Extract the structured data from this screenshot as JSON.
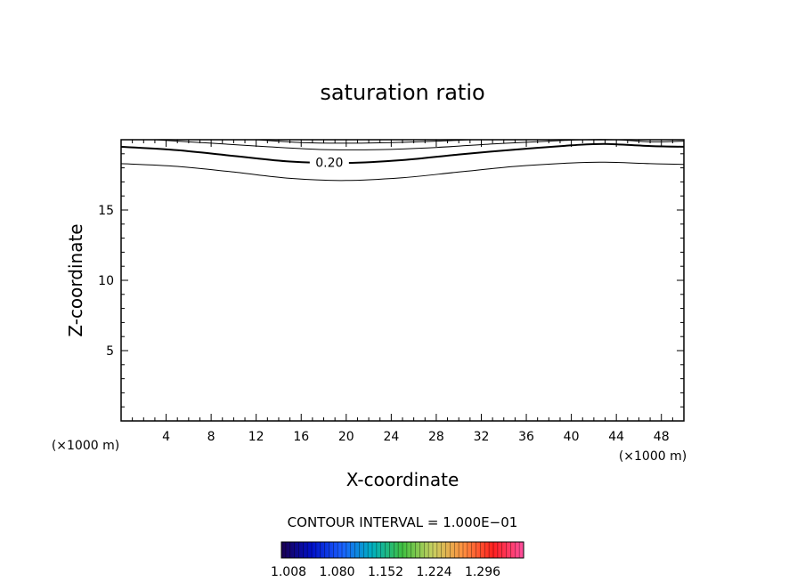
{
  "chart_data": {
    "type": "contour",
    "title": "saturation ratio",
    "xlabel": "X-coordinate",
    "ylabel": "Z-coordinate",
    "x_unit": "(×1000 m)",
    "y_unit": "(×1000 m)",
    "xlim": [
      0,
      50
    ],
    "ylim": [
      0,
      20
    ],
    "x_ticks": [
      4,
      8,
      12,
      16,
      20,
      24,
      28,
      32,
      36,
      40,
      44,
      48
    ],
    "y_ticks": [
      5,
      10,
      15
    ],
    "grid": false,
    "contour_interval_text": "CONTOUR INTERVAL = 1.000E−01",
    "contours": [
      {
        "level_label": "",
        "bold": false,
        "x": [
          0,
          5,
          10,
          15,
          20,
          25,
          30,
          35,
          40,
          43,
          47,
          50
        ],
        "y": [
          18.3,
          18.1,
          17.7,
          17.25,
          17.1,
          17.3,
          17.7,
          18.1,
          18.35,
          18.4,
          18.3,
          18.25
        ]
      },
      {
        "level_label": "0.20",
        "bold": true,
        "x": [
          0,
          5,
          10,
          15,
          20,
          25,
          30,
          35,
          40,
          43,
          47,
          50
        ],
        "y": [
          19.5,
          19.25,
          18.85,
          18.45,
          18.35,
          18.55,
          18.95,
          19.3,
          19.6,
          19.7,
          19.55,
          19.5
        ]
      },
      {
        "level_label": "",
        "bold": false,
        "x": [
          3,
          8,
          13,
          18,
          23,
          28,
          33,
          38,
          41,
          44,
          47,
          50
        ],
        "y": [
          20.0,
          19.75,
          19.5,
          19.3,
          19.3,
          19.45,
          19.7,
          19.9,
          20.0,
          20.0,
          19.85,
          19.9
        ]
      },
      {
        "level_label": "",
        "bold": false,
        "x": [
          12,
          16,
          20,
          24,
          28,
          31
        ],
        "y": [
          20.0,
          19.8,
          19.75,
          19.8,
          19.9,
          20.0
        ]
      }
    ],
    "colorbar": {
      "tick_labels": [
        "1.008",
        "1.080",
        "1.152",
        "1.224",
        "1.296"
      ],
      "colormap": [
        "#1a0050",
        "#0010c8",
        "#1a60ff",
        "#00b0c0",
        "#40c040",
        "#c8d060",
        "#ff9040",
        "#ff2020",
        "#ff50a0"
      ]
    }
  }
}
